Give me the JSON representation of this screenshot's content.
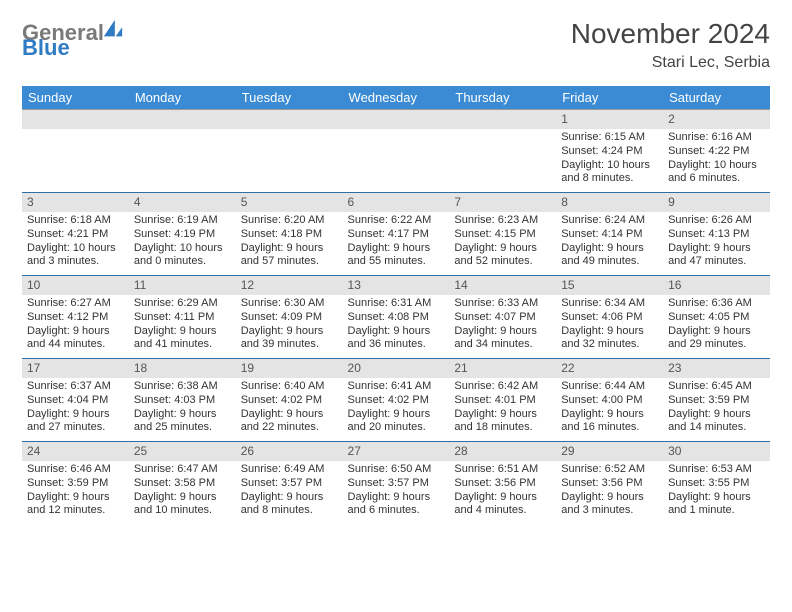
{
  "logo": {
    "text_gray": "General",
    "text_blue": "Blue"
  },
  "header": {
    "month_title": "November 2024",
    "location": "Stari Lec, Serbia"
  },
  "colors": {
    "header_bg": "#3b8bd4",
    "header_fg": "#ffffff",
    "row_border": "#2f6fa8",
    "daynum_bg": "#e4e4e4",
    "logo_gray": "#7a7a7a",
    "logo_blue": "#2f7cc4"
  },
  "day_headers": [
    "Sunday",
    "Monday",
    "Tuesday",
    "Wednesday",
    "Thursday",
    "Friday",
    "Saturday"
  ],
  "weeks": [
    [
      null,
      null,
      null,
      null,
      null,
      {
        "n": "1",
        "sr": "Sunrise: 6:15 AM",
        "ss": "Sunset: 4:24 PM",
        "dl": "Daylight: 10 hours and 8 minutes."
      },
      {
        "n": "2",
        "sr": "Sunrise: 6:16 AM",
        "ss": "Sunset: 4:22 PM",
        "dl": "Daylight: 10 hours and 6 minutes."
      }
    ],
    [
      {
        "n": "3",
        "sr": "Sunrise: 6:18 AM",
        "ss": "Sunset: 4:21 PM",
        "dl": "Daylight: 10 hours and 3 minutes."
      },
      {
        "n": "4",
        "sr": "Sunrise: 6:19 AM",
        "ss": "Sunset: 4:19 PM",
        "dl": "Daylight: 10 hours and 0 minutes."
      },
      {
        "n": "5",
        "sr": "Sunrise: 6:20 AM",
        "ss": "Sunset: 4:18 PM",
        "dl": "Daylight: 9 hours and 57 minutes."
      },
      {
        "n": "6",
        "sr": "Sunrise: 6:22 AM",
        "ss": "Sunset: 4:17 PM",
        "dl": "Daylight: 9 hours and 55 minutes."
      },
      {
        "n": "7",
        "sr": "Sunrise: 6:23 AM",
        "ss": "Sunset: 4:15 PM",
        "dl": "Daylight: 9 hours and 52 minutes."
      },
      {
        "n": "8",
        "sr": "Sunrise: 6:24 AM",
        "ss": "Sunset: 4:14 PM",
        "dl": "Daylight: 9 hours and 49 minutes."
      },
      {
        "n": "9",
        "sr": "Sunrise: 6:26 AM",
        "ss": "Sunset: 4:13 PM",
        "dl": "Daylight: 9 hours and 47 minutes."
      }
    ],
    [
      {
        "n": "10",
        "sr": "Sunrise: 6:27 AM",
        "ss": "Sunset: 4:12 PM",
        "dl": "Daylight: 9 hours and 44 minutes."
      },
      {
        "n": "11",
        "sr": "Sunrise: 6:29 AM",
        "ss": "Sunset: 4:11 PM",
        "dl": "Daylight: 9 hours and 41 minutes."
      },
      {
        "n": "12",
        "sr": "Sunrise: 6:30 AM",
        "ss": "Sunset: 4:09 PM",
        "dl": "Daylight: 9 hours and 39 minutes."
      },
      {
        "n": "13",
        "sr": "Sunrise: 6:31 AM",
        "ss": "Sunset: 4:08 PM",
        "dl": "Daylight: 9 hours and 36 minutes."
      },
      {
        "n": "14",
        "sr": "Sunrise: 6:33 AM",
        "ss": "Sunset: 4:07 PM",
        "dl": "Daylight: 9 hours and 34 minutes."
      },
      {
        "n": "15",
        "sr": "Sunrise: 6:34 AM",
        "ss": "Sunset: 4:06 PM",
        "dl": "Daylight: 9 hours and 32 minutes."
      },
      {
        "n": "16",
        "sr": "Sunrise: 6:36 AM",
        "ss": "Sunset: 4:05 PM",
        "dl": "Daylight: 9 hours and 29 minutes."
      }
    ],
    [
      {
        "n": "17",
        "sr": "Sunrise: 6:37 AM",
        "ss": "Sunset: 4:04 PM",
        "dl": "Daylight: 9 hours and 27 minutes."
      },
      {
        "n": "18",
        "sr": "Sunrise: 6:38 AM",
        "ss": "Sunset: 4:03 PM",
        "dl": "Daylight: 9 hours and 25 minutes."
      },
      {
        "n": "19",
        "sr": "Sunrise: 6:40 AM",
        "ss": "Sunset: 4:02 PM",
        "dl": "Daylight: 9 hours and 22 minutes."
      },
      {
        "n": "20",
        "sr": "Sunrise: 6:41 AM",
        "ss": "Sunset: 4:02 PM",
        "dl": "Daylight: 9 hours and 20 minutes."
      },
      {
        "n": "21",
        "sr": "Sunrise: 6:42 AM",
        "ss": "Sunset: 4:01 PM",
        "dl": "Daylight: 9 hours and 18 minutes."
      },
      {
        "n": "22",
        "sr": "Sunrise: 6:44 AM",
        "ss": "Sunset: 4:00 PM",
        "dl": "Daylight: 9 hours and 16 minutes."
      },
      {
        "n": "23",
        "sr": "Sunrise: 6:45 AM",
        "ss": "Sunset: 3:59 PM",
        "dl": "Daylight: 9 hours and 14 minutes."
      }
    ],
    [
      {
        "n": "24",
        "sr": "Sunrise: 6:46 AM",
        "ss": "Sunset: 3:59 PM",
        "dl": "Daylight: 9 hours and 12 minutes."
      },
      {
        "n": "25",
        "sr": "Sunrise: 6:47 AM",
        "ss": "Sunset: 3:58 PM",
        "dl": "Daylight: 9 hours and 10 minutes."
      },
      {
        "n": "26",
        "sr": "Sunrise: 6:49 AM",
        "ss": "Sunset: 3:57 PM",
        "dl": "Daylight: 9 hours and 8 minutes."
      },
      {
        "n": "27",
        "sr": "Sunrise: 6:50 AM",
        "ss": "Sunset: 3:57 PM",
        "dl": "Daylight: 9 hours and 6 minutes."
      },
      {
        "n": "28",
        "sr": "Sunrise: 6:51 AM",
        "ss": "Sunset: 3:56 PM",
        "dl": "Daylight: 9 hours and 4 minutes."
      },
      {
        "n": "29",
        "sr": "Sunrise: 6:52 AM",
        "ss": "Sunset: 3:56 PM",
        "dl": "Daylight: 9 hours and 3 minutes."
      },
      {
        "n": "30",
        "sr": "Sunrise: 6:53 AM",
        "ss": "Sunset: 3:55 PM",
        "dl": "Daylight: 9 hours and 1 minute."
      }
    ]
  ]
}
